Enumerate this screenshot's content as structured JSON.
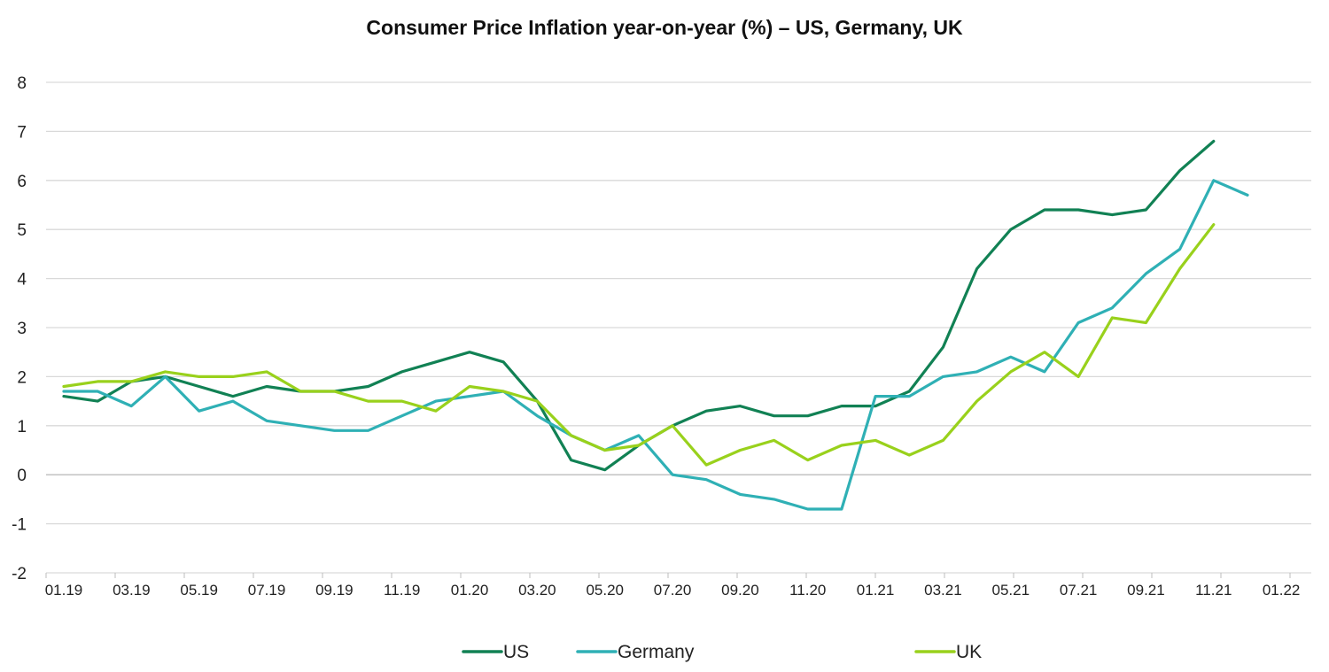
{
  "chart_data": {
    "type": "line",
    "title": "Consumer Price Inflation year-on-year (%) – US, Germany, UK",
    "xlabel": "",
    "ylabel": "",
    "ylim": [
      -2,
      8
    ],
    "yticks": [
      "-2",
      "-1",
      "0",
      "1",
      "2",
      "3",
      "4",
      "5",
      "6",
      "7",
      "8"
    ],
    "xtick_labels": [
      "01.19",
      "03.19",
      "05.19",
      "07.19",
      "09.19",
      "11.19",
      "01.20",
      "03.20",
      "05.20",
      "07.20",
      "09.20",
      "11.20",
      "01.21",
      "03.21",
      "05.21",
      "07.21",
      "09.21",
      "11.21",
      "01.22"
    ],
    "x_start": "01.19",
    "grid": "horizontal",
    "legend_position": "bottom",
    "series": [
      {
        "name": "US",
        "color": "#118154",
        "values": [
          1.6,
          1.5,
          1.9,
          2.0,
          1.8,
          1.6,
          1.8,
          1.7,
          1.7,
          1.8,
          2.1,
          2.3,
          2.5,
          2.3,
          1.5,
          0.3,
          0.1,
          0.6,
          1.0,
          1.3,
          1.4,
          1.2,
          1.2,
          1.4,
          1.4,
          1.7,
          2.6,
          4.2,
          5.0,
          5.4,
          5.4,
          5.3,
          5.4,
          6.2,
          6.8
        ]
      },
      {
        "name": "Germany",
        "color": "#2fb0b5",
        "values": [
          1.7,
          1.7,
          1.4,
          2.0,
          1.3,
          1.5,
          1.1,
          1.0,
          0.9,
          0.9,
          1.2,
          1.5,
          1.6,
          1.7,
          1.2,
          0.8,
          0.5,
          0.8,
          0.0,
          -0.1,
          -0.4,
          -0.5,
          -0.7,
          -0.7,
          1.6,
          1.6,
          2.0,
          2.1,
          2.4,
          2.1,
          3.1,
          3.4,
          4.1,
          4.6,
          6.0,
          5.7
        ]
      },
      {
        "name": "UK",
        "color": "#99d11c",
        "values": [
          1.8,
          1.9,
          1.9,
          2.1,
          2.0,
          2.0,
          2.1,
          1.7,
          1.7,
          1.5,
          1.5,
          1.3,
          1.8,
          1.7,
          1.5,
          0.8,
          0.5,
          0.6,
          1.0,
          0.2,
          0.5,
          0.7,
          0.3,
          0.6,
          0.7,
          0.4,
          0.7,
          1.5,
          2.1,
          2.5,
          2.0,
          3.2,
          3.1,
          4.2,
          5.1
        ]
      }
    ]
  }
}
